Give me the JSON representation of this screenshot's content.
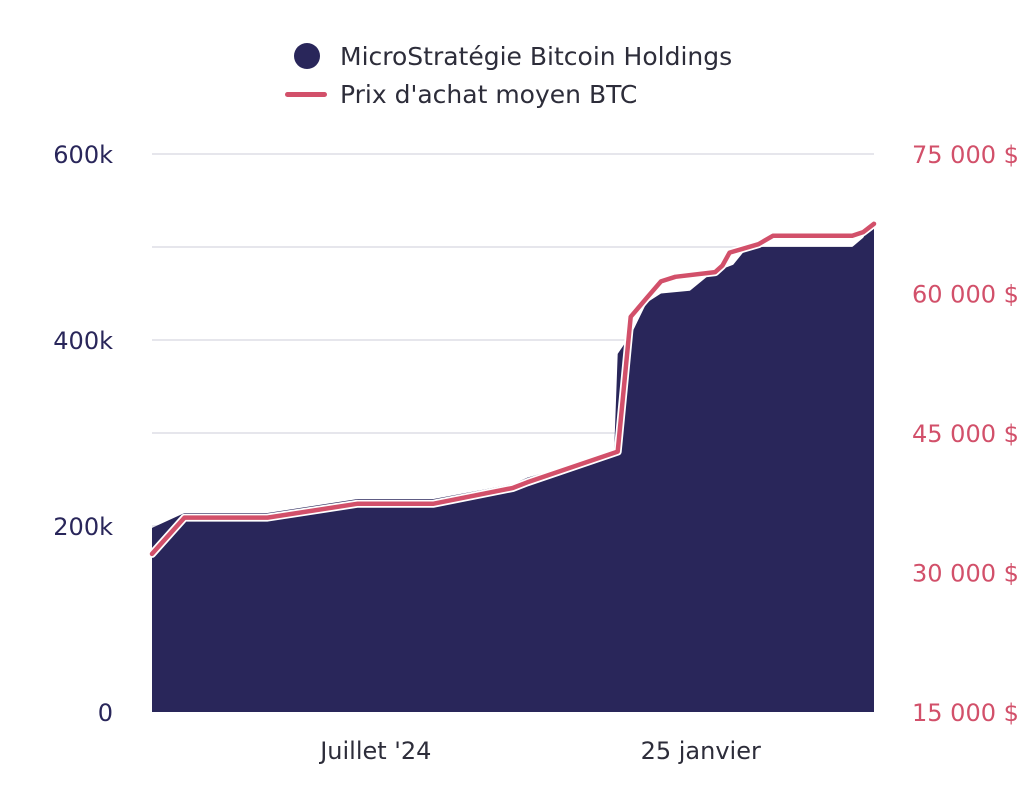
{
  "chart_data": {
    "type": "area+line",
    "colors": {
      "holdings": "#29265a",
      "price": "#d2506a",
      "grid": "#e6e6ec",
      "text": "#2d2d3a"
    },
    "legend": [
      {
        "label": "MicroStratégie Bitcoin Holdings",
        "marker": "circle",
        "color": "#29265a"
      },
      {
        "label": "Prix d'achat moyen BTC",
        "marker": "line",
        "color": "#d2506a"
      }
    ],
    "x_ticks": [
      {
        "label": "Juillet '24",
        "t": 0.31
      },
      {
        "label": "25 janvier",
        "t": 0.76
      }
    ],
    "y_left": {
      "min": 0,
      "max": 600000,
      "ticks": [
        {
          "value": 0,
          "label": "0"
        },
        {
          "value": 200000,
          "label": "200k"
        },
        {
          "value": 400000,
          "label": "400k"
        },
        {
          "value": 600000,
          "label": "600k"
        }
      ]
    },
    "y_right": {
      "min": 15000,
      "max": 75000,
      "ticks": [
        {
          "value": 15000,
          "label": "15 000 $"
        },
        {
          "value": 30000,
          "label": "30 000 $"
        },
        {
          "value": 45000,
          "label": "45 000 $"
        },
        {
          "value": 60000,
          "label": "60 000 $"
        },
        {
          "value": 75000,
          "label": "75 000 $"
        }
      ]
    },
    "series": [
      {
        "name": "MicroStratégie Bitcoin Holdings",
        "type": "area",
        "axis": "left",
        "points": [
          [
            0.0,
            198000
          ],
          [
            0.045,
            214000
          ],
          [
            0.16,
            214000
          ],
          [
            0.285,
            229000
          ],
          [
            0.39,
            229000
          ],
          [
            0.5,
            245000
          ],
          [
            0.52,
            252000
          ],
          [
            0.64,
            279000
          ],
          [
            0.645,
            385000
          ],
          [
            0.665,
            408000
          ],
          [
            0.685,
            440000
          ],
          [
            0.705,
            450000
          ],
          [
            0.745,
            453000
          ],
          [
            0.775,
            472000
          ],
          [
            0.805,
            481000
          ],
          [
            0.825,
            500000
          ],
          [
            0.97,
            500000
          ],
          [
            0.985,
            510000
          ],
          [
            1.0,
            528000
          ]
        ]
      },
      {
        "name": "Prix d'achat moyen BTC",
        "type": "line",
        "axis": "right",
        "points": [
          [
            0.0,
            32000
          ],
          [
            0.045,
            35900
          ],
          [
            0.16,
            35900
          ],
          [
            0.285,
            37400
          ],
          [
            0.39,
            37400
          ],
          [
            0.5,
            39100
          ],
          [
            0.52,
            39700
          ],
          [
            0.645,
            43000
          ],
          [
            0.663,
            57500
          ],
          [
            0.685,
            59500
          ],
          [
            0.705,
            61300
          ],
          [
            0.725,
            61800
          ],
          [
            0.78,
            62300
          ],
          [
            0.79,
            63000
          ],
          [
            0.8,
            64400
          ],
          [
            0.84,
            65300
          ],
          [
            0.86,
            66200
          ],
          [
            0.97,
            66200
          ],
          [
            0.985,
            66600
          ],
          [
            1.0,
            67500
          ]
        ]
      }
    ]
  }
}
